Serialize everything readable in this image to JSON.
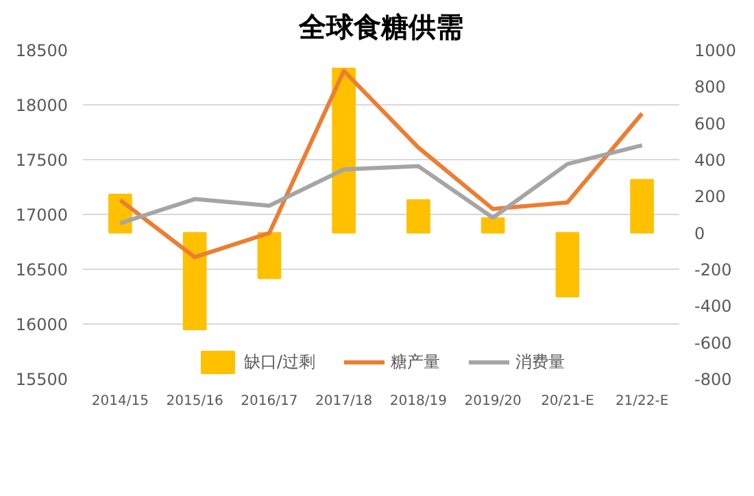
{
  "chart_data": {
    "type": "line",
    "title": "全球食糖供需",
    "categories": [
      "2014/15",
      "2015/16",
      "2016/17",
      "2017/18",
      "2018/19",
      "2019/20",
      "20/21-E",
      "21/22-E"
    ],
    "series": [
      {
        "name": "缺口/过剩",
        "type": "bar",
        "axis": "y2",
        "color": "#ffc000",
        "values": [
          210,
          -530,
          -250,
          900,
          180,
          80,
          -350,
          290
        ]
      },
      {
        "name": "糖产量",
        "color": "#ed7d31",
        "values": [
          17130,
          16610,
          16830,
          18310,
          17610,
          17050,
          17110,
          17920
        ]
      },
      {
        "name": "消费量",
        "color": "#a5a5a5",
        "values": [
          16920,
          17140,
          17080,
          17410,
          17440,
          16970,
          17460,
          17630
        ]
      }
    ],
    "ylim": [
      15500,
      18500
    ],
    "yticks": [
      15500,
      16000,
      16500,
      17000,
      17500,
      18000,
      18500
    ],
    "y2lim": [
      -800,
      1000
    ],
    "y2ticks": [
      -800,
      -600,
      -400,
      -200,
      0,
      200,
      400,
      600,
      800,
      1000
    ],
    "grid": "y",
    "legend": "bottom"
  }
}
